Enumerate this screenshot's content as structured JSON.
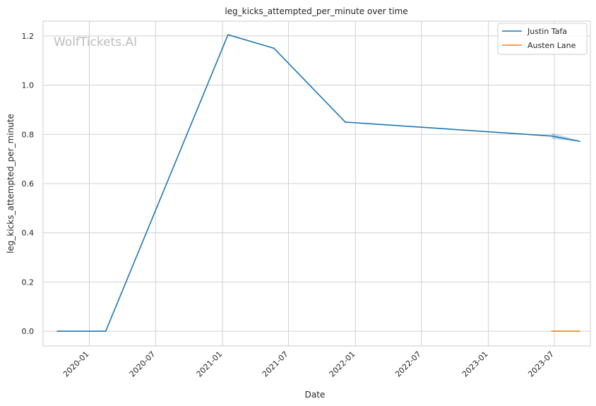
{
  "chart_data": {
    "type": "line",
    "title": "leg_kicks_attempted_per_minute over time",
    "xlabel": "Date",
    "ylabel": "leg_kicks_attempted_per_minute",
    "watermark": "WolfTickets.AI",
    "grid": true,
    "legend_placement": "top-right",
    "x_range": [
      "2019-08-27",
      "2023-10-08"
    ],
    "ylim": [
      -0.06,
      1.26
    ],
    "x_ticks": [
      "2020-01",
      "2020-07",
      "2021-01",
      "2021-07",
      "2022-01",
      "2022-07",
      "2023-01",
      "2023-07"
    ],
    "y_ticks": [
      0.0,
      0.2,
      0.4,
      0.6,
      0.8,
      1.0,
      1.2
    ],
    "y_tick_labels": [
      "0.0",
      "0.2",
      "0.4",
      "0.6",
      "0.8",
      "1.0",
      "1.2"
    ],
    "series": [
      {
        "name": "Justin Tafa",
        "color": "#1f77b4",
        "points": [
          {
            "x": "2019-10-05",
            "y": 0.0
          },
          {
            "x": "2020-02-15",
            "y": 0.0
          },
          {
            "x": "2021-01-16",
            "y": 1.205
          },
          {
            "x": "2021-05-22",
            "y": 1.15
          },
          {
            "x": "2021-12-04",
            "y": 0.85
          },
          {
            "x": "2023-06-24",
            "y": 0.793
          },
          {
            "x": "2023-09-09",
            "y": 0.772
          }
        ],
        "band": [
          {
            "x": "2023-06-24",
            "low": 0.781,
            "high": 0.806
          },
          {
            "x": "2023-09-09",
            "low": 0.77,
            "high": 0.774
          }
        ]
      },
      {
        "name": "Austen Lane",
        "color": "#ff7f0e",
        "points": [
          {
            "x": "2023-06-24",
            "y": 0.0
          },
          {
            "x": "2023-09-09",
            "y": 0.0
          }
        ]
      }
    ]
  }
}
